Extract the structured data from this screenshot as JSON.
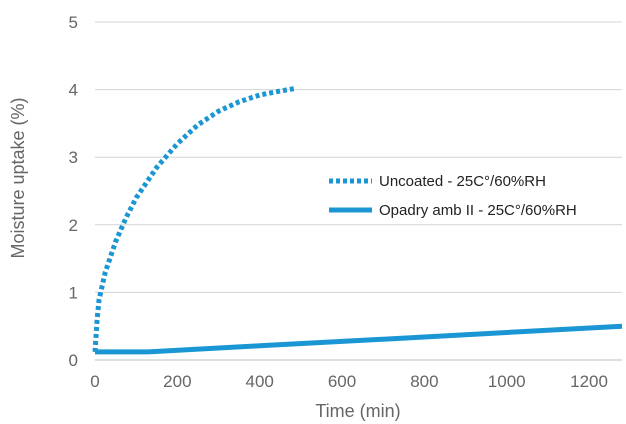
{
  "chart_data": {
    "type": "line",
    "xlabel": "Time (min)",
    "ylabel": "Moisture uptake (%)",
    "xlim": [
      0,
      1280
    ],
    "ylim": [
      0,
      5
    ],
    "x_ticks": [
      "0",
      "200",
      "400",
      "600",
      "800",
      "1000",
      "1200"
    ],
    "y_ticks": [
      "0",
      "1",
      "2",
      "3",
      "4",
      "5"
    ],
    "grid": "horizontal",
    "legend_position": "right",
    "series": [
      {
        "name": "Uncoated - 25C°/60%RH",
        "style": "dotted",
        "color": "#1a96d4",
        "points": [
          [
            0,
            0.12
          ],
          [
            5,
            0.6
          ],
          [
            10,
            0.9
          ],
          [
            25,
            1.3
          ],
          [
            50,
            1.75
          ],
          [
            75,
            2.1
          ],
          [
            100,
            2.4
          ],
          [
            150,
            2.85
          ],
          [
            200,
            3.2
          ],
          [
            250,
            3.48
          ],
          [
            300,
            3.68
          ],
          [
            350,
            3.82
          ],
          [
            400,
            3.92
          ],
          [
            450,
            3.98
          ],
          [
            490,
            4.02
          ]
        ]
      },
      {
        "name": "Opadry amb II - 25C°/60%RH",
        "style": "solid",
        "color": "#1a96d4",
        "points": [
          [
            0,
            0.12
          ],
          [
            130,
            0.12
          ],
          [
            400,
            0.21
          ],
          [
            800,
            0.34
          ],
          [
            1280,
            0.5
          ]
        ]
      }
    ]
  }
}
